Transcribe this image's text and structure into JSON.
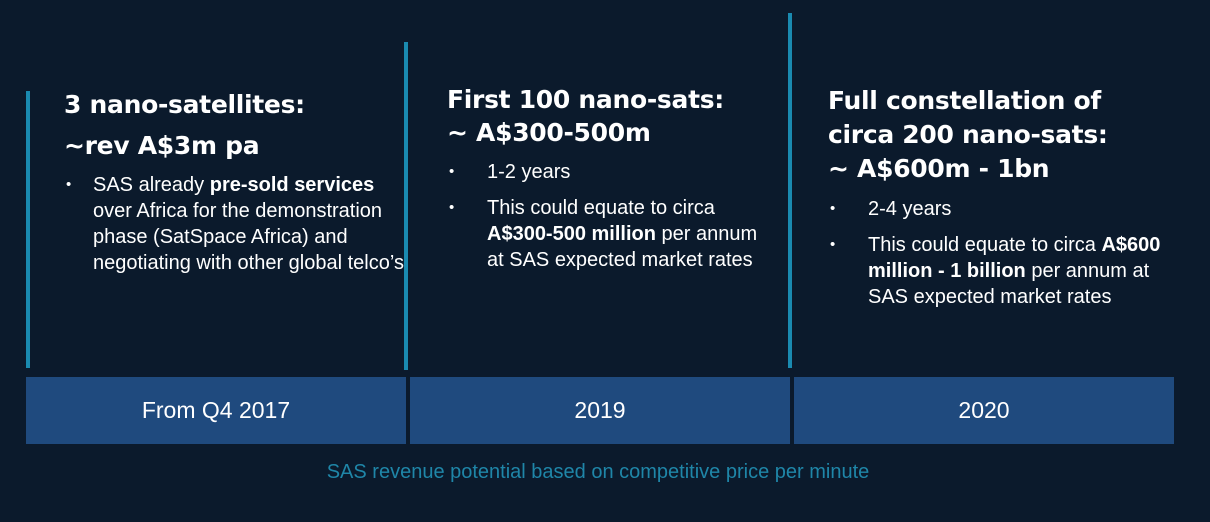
{
  "columns": [
    {
      "heading": [
        "3 nano-satellites:",
        "~rev A$3m pa"
      ],
      "bullets": [
        {
          "parts": [
            {
              "text": "SAS already ",
              "bold": false
            },
            {
              "text": "pre-sold services",
              "bold": true
            },
            {
              "text": " over Africa for the demonstration phase (SatSpace Africa) and negotiating with other global telco’s",
              "bold": false
            }
          ]
        }
      ]
    },
    {
      "heading": [
        "First 100 nano-sats:",
        "~ A$300-500m"
      ],
      "bullets": [
        {
          "parts": [
            {
              "text": "1-2 years",
              "bold": false
            }
          ]
        },
        {
          "parts": [
            {
              "text": "This could equate to circa ",
              "bold": false
            },
            {
              "text": "A$300-500 million",
              "bold": true
            },
            {
              "text": " per annum at SAS expected market rates",
              "bold": false
            }
          ]
        }
      ]
    },
    {
      "heading": [
        "Full constellation of",
        "circa 200 nano-sats:",
        "~ A$600m - 1bn"
      ],
      "bullets": [
        {
          "parts": [
            {
              "text": "2-4 years",
              "bold": false
            }
          ]
        },
        {
          "parts": [
            {
              "text": "This could equate to circa ",
              "bold": false
            },
            {
              "text": "A$600 million - 1 billion",
              "bold": true
            },
            {
              "text": " per annum at SAS expected market rates",
              "bold": false
            }
          ]
        }
      ]
    }
  ],
  "timeline": [
    "From Q4 2017",
    "2019",
    "2020"
  ],
  "caption": "SAS revenue potential based on competitive price per minute",
  "colors": {
    "background": "#0b1a2c",
    "accent_bar": "#1a8ab0",
    "timeline_fill": "#1f4a7e",
    "caption_text": "#1f86a8"
  }
}
